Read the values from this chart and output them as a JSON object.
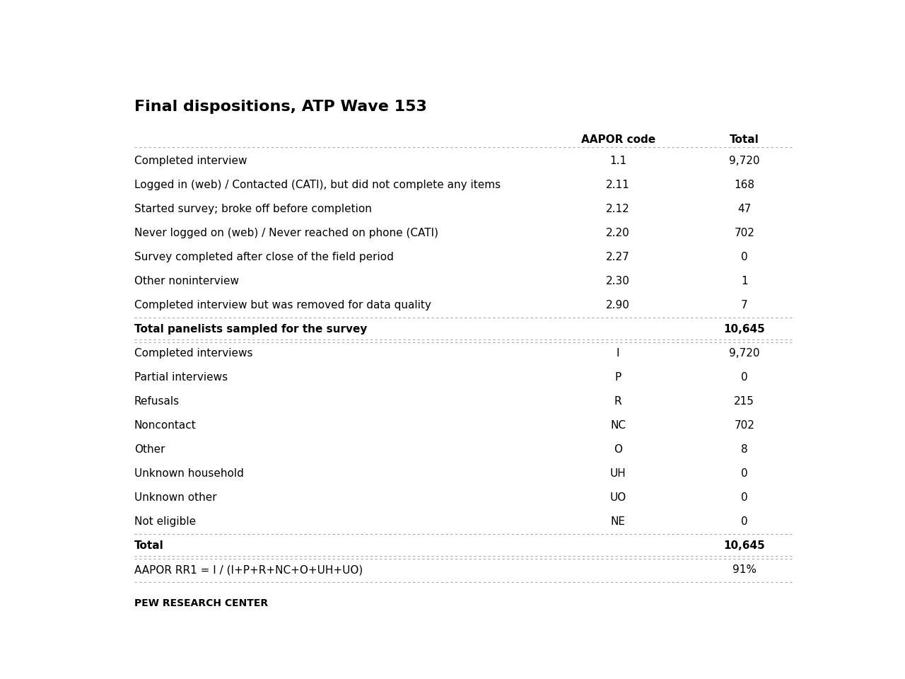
{
  "title": "Final dispositions, ATP Wave 153",
  "title_fontsize": 16,
  "background_color": "#ffffff",
  "col_headers": [
    "AAPOR code",
    "Total"
  ],
  "rows": [
    {
      "label": "Completed interview",
      "code": "1.1",
      "total": "9,720",
      "bold": false,
      "separator_after": false
    },
    {
      "label": "Logged in (web) / Contacted (CATI), but did not complete any items",
      "code": "2.11",
      "total": "168",
      "bold": false,
      "separator_after": false
    },
    {
      "label": "Started survey; broke off before completion",
      "code": "2.12",
      "total": "47",
      "bold": false,
      "separator_after": false
    },
    {
      "label": "Never logged on (web) / Never reached on phone (CATI)",
      "code": "2.20",
      "total": "702",
      "bold": false,
      "separator_after": false
    },
    {
      "label": "Survey completed after close of the field period",
      "code": "2.27",
      "total": "0",
      "bold": false,
      "separator_after": false
    },
    {
      "label": "Other noninterview",
      "code": "2.30",
      "total": "1",
      "bold": false,
      "separator_after": false
    },
    {
      "label": "Completed interview but was removed for data quality",
      "code": "2.90",
      "total": "7",
      "bold": false,
      "separator_after": true
    },
    {
      "label": "Total panelists sampled for the survey",
      "code": "",
      "total": "10,645",
      "bold": true,
      "separator_after": true
    },
    {
      "label": "Completed interviews",
      "code": "I",
      "total": "9,720",
      "bold": false,
      "separator_after": false
    },
    {
      "label": "Partial interviews",
      "code": "P",
      "total": "0",
      "bold": false,
      "separator_after": false
    },
    {
      "label": "Refusals",
      "code": "R",
      "total": "215",
      "bold": false,
      "separator_after": false
    },
    {
      "label": "Noncontact",
      "code": "NC",
      "total": "702",
      "bold": false,
      "separator_after": false
    },
    {
      "label": "Other",
      "code": "O",
      "total": "8",
      "bold": false,
      "separator_after": false
    },
    {
      "label": "Unknown household",
      "code": "UH",
      "total": "0",
      "bold": false,
      "separator_after": false
    },
    {
      "label": "Unknown other",
      "code": "UO",
      "total": "0",
      "bold": false,
      "separator_after": false
    },
    {
      "label": "Not eligible",
      "code": "NE",
      "total": "0",
      "bold": false,
      "separator_after": true
    },
    {
      "label": "Total",
      "code": "",
      "total": "10,645",
      "bold": true,
      "separator_after": true
    },
    {
      "label": "AAPOR RR1 = I / (I+P+R+NC+O+UH+UO)",
      "code": "",
      "total": "91%",
      "bold": false,
      "separator_after": true
    }
  ],
  "footer": "PEW RESEARCH CENTER",
  "text_color": "#000000",
  "line_color": "#aaaaaa"
}
